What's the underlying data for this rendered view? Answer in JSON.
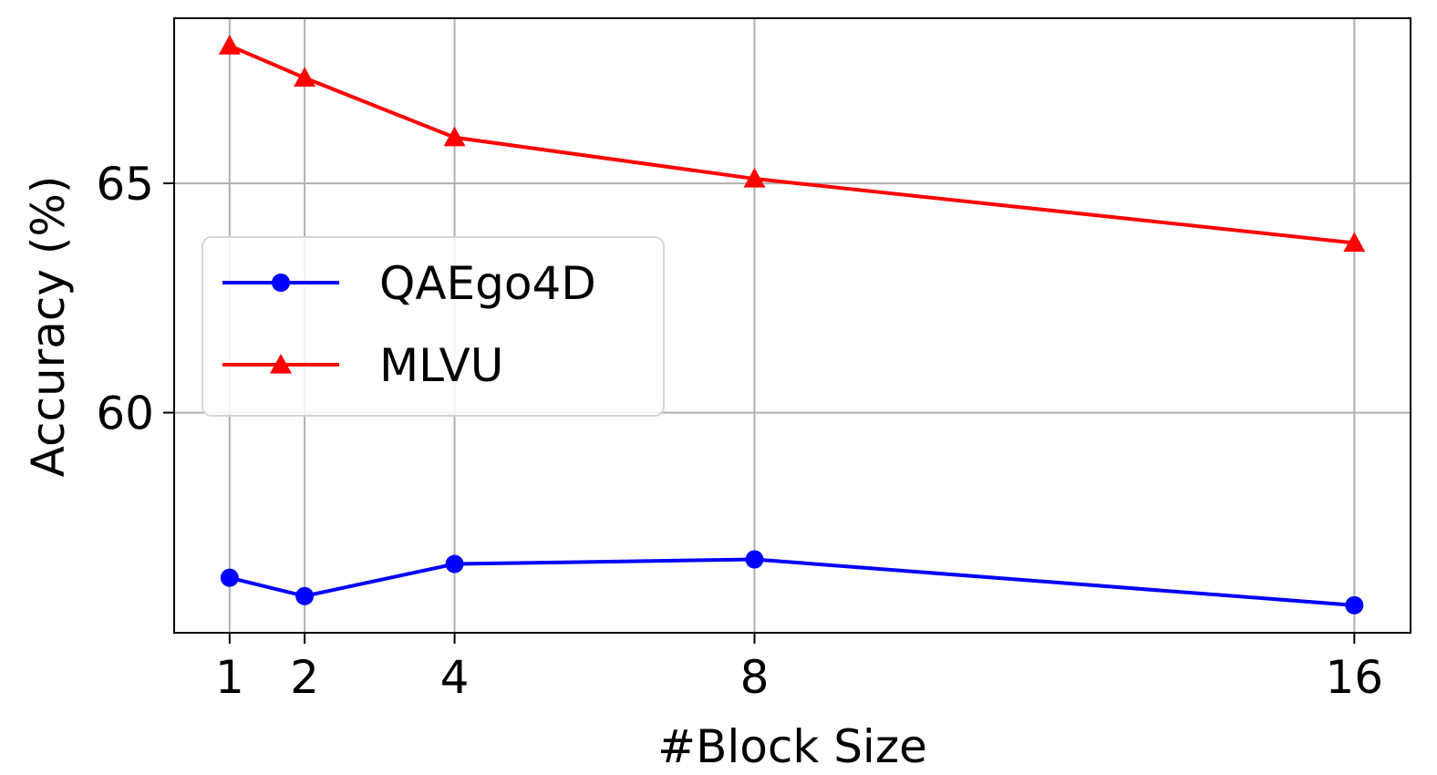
{
  "chart_data": {
    "type": "line",
    "x": [
      1,
      2,
      4,
      8,
      16
    ],
    "x_ticks": [
      "1",
      "2",
      "4",
      "8",
      "16"
    ],
    "y_ticks": [
      "60",
      "65"
    ],
    "y_tick_values": [
      60,
      65
    ],
    "xlim": [
      0.26,
      16.75
    ],
    "ylim": [
      55.2,
      68.6
    ],
    "xlabel": "#Block Size",
    "ylabel": "Accuracy (%)",
    "grid": true,
    "legend_position": "center-left",
    "series": [
      {
        "name": "QAEgo4D",
        "color": "#0000ff",
        "marker": "circle",
        "values": [
          56.4,
          56.0,
          56.7,
          56.8,
          55.8
        ]
      },
      {
        "name": "MLVU",
        "color": "#ff0000",
        "marker": "triangle",
        "values": [
          68.0,
          67.3,
          66.0,
          65.1,
          63.7
        ]
      }
    ]
  }
}
